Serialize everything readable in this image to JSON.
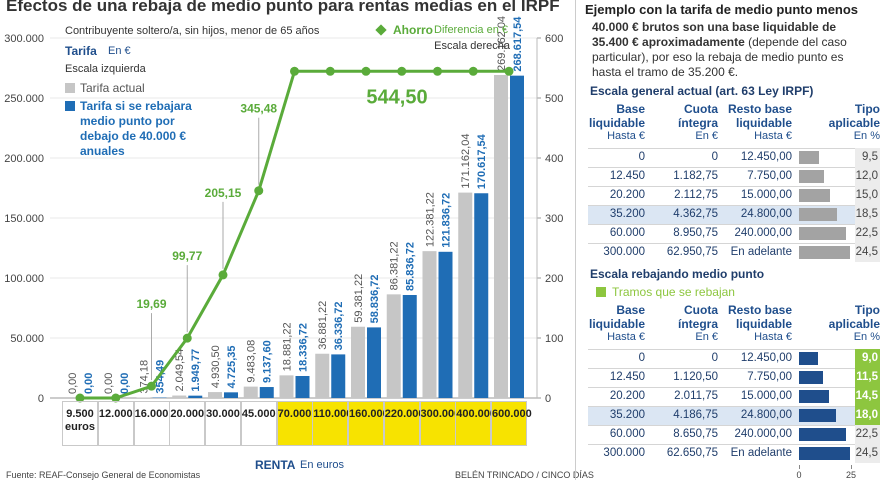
{
  "chart_data": {
    "type": "bar",
    "title": "Efectos de una rebaja de medio punto para rentas medias en el IRPF",
    "subtitle": "Contribuyente soltero/a, sin hijos, menor de 65 años",
    "y_title": "Tarifa",
    "y_unit": "En €",
    "y_note": "Escala izquierda",
    "y2_unit": "Diferencia en €",
    "y2_note": "Escala derecha",
    "x_title": "RENTA",
    "x_unit": "En euros",
    "categories": [
      "9.500 euros",
      "12.000",
      "16.000",
      "20.000",
      "30.000",
      "45.000",
      "70.000",
      "110.000",
      "160.000",
      "220.000",
      "300.000",
      "400.000",
      "600.000"
    ],
    "category_highlight": [
      false,
      false,
      false,
      false,
      false,
      false,
      true,
      true,
      true,
      true,
      true,
      true,
      true
    ],
    "highlight_color": "#f7e300",
    "series": [
      {
        "name": "Tarifa actual",
        "color": "#c6c6c6",
        "values": [
          0,
          0,
          374.18,
          2049.54,
          4930.5,
          9483.08,
          18881.22,
          36881.22,
          59381.22,
          86381.22,
          122381.22,
          171162.04,
          269162.04
        ],
        "value_labels": [
          "0,00",
          "0,00",
          "374,18",
          "2.049,54",
          "4.930,50",
          "9.483,08",
          "18.881,22",
          "36.881,22",
          "59.381,22",
          "86.381,22",
          "122.381,22",
          "171.162,04",
          "269.162,04"
        ]
      },
      {
        "name": "Tarifa si se rebajara medio punto por debajo de 40.000 € anuales",
        "color": "#1f6db5",
        "values": [
          0,
          0,
          354.49,
          1949.77,
          4725.35,
          9137.6,
          18336.72,
          36336.72,
          58836.72,
          85836.72,
          121836.72,
          170617.54,
          268617.54
        ],
        "value_labels": [
          "0,00",
          "0,00",
          "354,49",
          "1.949,77",
          "4.725,35",
          "9.137,60",
          "18.336,72",
          "36.336,72",
          "58.836,72",
          "85.836,72",
          "121.836,72",
          "170.617,54",
          "268.617,54"
        ]
      },
      {
        "name": "Ahorro",
        "type": "line",
        "axis": "y2",
        "color": "#5aab3a",
        "values": [
          0,
          0,
          19.69,
          99.77,
          205.15,
          345.48,
          544.5,
          544.5,
          544.5,
          544.5,
          544.5,
          544.5,
          544.5
        ],
        "value_labels": [
          null,
          null,
          "19,69",
          "99,77",
          "205,15",
          "345,48",
          "544,50",
          null,
          null,
          null,
          null,
          null,
          null
        ]
      }
    ],
    "ylim": [
      0,
      300000
    ],
    "yticks": [
      0,
      {
        "value": 50000,
        "label": "50.000"
      },
      {
        "value": 100000,
        "label": "100.000"
      },
      {
        "value": 150000,
        "label": "150.000"
      },
      {
        "value": 200000,
        "label": "200.000"
      },
      {
        "value": 250000,
        "label": "250.000"
      },
      {
        "value": 300000,
        "label": "300.000"
      }
    ],
    "y2lim": [
      0,
      600
    ],
    "y2ticks": [
      0,
      100,
      200,
      300,
      400,
      500,
      600
    ],
    "grid": true
  },
  "source": "Fuente: REAF-Consejo General de Economistas",
  "credit": "BELÉN TRINCADO / CINCO DÍAS",
  "panel": {
    "title": "Ejemplo con la tarifa de medio punto menos",
    "text_bold": "40.000 € brutos son una base liquidable de 35.400 € aproximadamente",
    "text": " (depende del caso particular), por eso la rebaja de medio punto es hasta el tramo de 35.200 €.",
    "headers": [
      {
        "label": "Base liquidable",
        "unit": "Hasta €"
      },
      {
        "label": "Cuota íntegra",
        "unit": "En €"
      },
      {
        "label": "Resto base liquidable",
        "unit": "Hasta €"
      },
      {
        "label": "Tipo aplicable",
        "unit": "En %"
      }
    ],
    "rate_bars": {
      "xlim": [
        0,
        25
      ],
      "ticks": [
        0,
        25
      ]
    },
    "tables": [
      {
        "title": "Escala general actual (art. 63 Ley IRPF)",
        "bar_color": "#a3a3a3",
        "highlight_row": 3,
        "rows": [
          {
            "base": "0",
            "cuota": "0",
            "resto": "12.450,00",
            "tipo": {
              "value": 9.5,
              "label": "9,5"
            }
          },
          {
            "base": "12.450",
            "cuota": "1.182,75",
            "resto": "7.750,00",
            "tipo": {
              "value": 12.0,
              "label": "12,0"
            }
          },
          {
            "base": "20.200",
            "cuota": "2.112,75",
            "resto": "15.000,00",
            "tipo": {
              "value": 15.0,
              "label": "15,0"
            }
          },
          {
            "base": "35.200",
            "cuota": "4.362,75",
            "resto": "24.800,00",
            "tipo": {
              "value": 18.5,
              "label": "18,5"
            }
          },
          {
            "base": "60.000",
            "cuota": "8.950,75",
            "resto": "240.000,00",
            "tipo": {
              "value": 22.5,
              "label": "22,5"
            }
          },
          {
            "base": "300.000",
            "cuota": "62.950,75",
            "resto": "En adelante",
            "tipo": {
              "value": 24.5,
              "label": "24,5"
            }
          }
        ]
      },
      {
        "title": "Escala rebajando medio punto",
        "legend": "Tramos que se rebajan",
        "legend_color": "#8dc63f",
        "bar_color": "#1f4e8c",
        "highlight_row": 3,
        "rows": [
          {
            "base": "0",
            "cuota": "0",
            "resto": "12.450,00",
            "tipo": {
              "value": 9.0,
              "label": "9,0"
            },
            "reduced": true
          },
          {
            "base": "12.450",
            "cuota": "1.120,50",
            "resto": "7.750,00",
            "tipo": {
              "value": 11.5,
              "label": "11,5"
            },
            "reduced": true
          },
          {
            "base": "20.200",
            "cuota": "2.011,75",
            "resto": "15.000,00",
            "tipo": {
              "value": 14.5,
              "label": "14,5"
            },
            "reduced": true
          },
          {
            "base": "35.200",
            "cuota": "4.186,75",
            "resto": "24.800,00",
            "tipo": {
              "value": 18.0,
              "label": "18,0"
            },
            "reduced": true
          },
          {
            "base": "60.000",
            "cuota": "8.650,75",
            "resto": "240.000,00",
            "tipo": {
              "value": 22.5,
              "label": "22,5"
            },
            "reduced": false
          },
          {
            "base": "300.000",
            "cuota": "62.650,75",
            "resto": "En adelante",
            "tipo": {
              "value": 24.5,
              "label": "24,5"
            },
            "reduced": false
          }
        ]
      }
    ]
  }
}
